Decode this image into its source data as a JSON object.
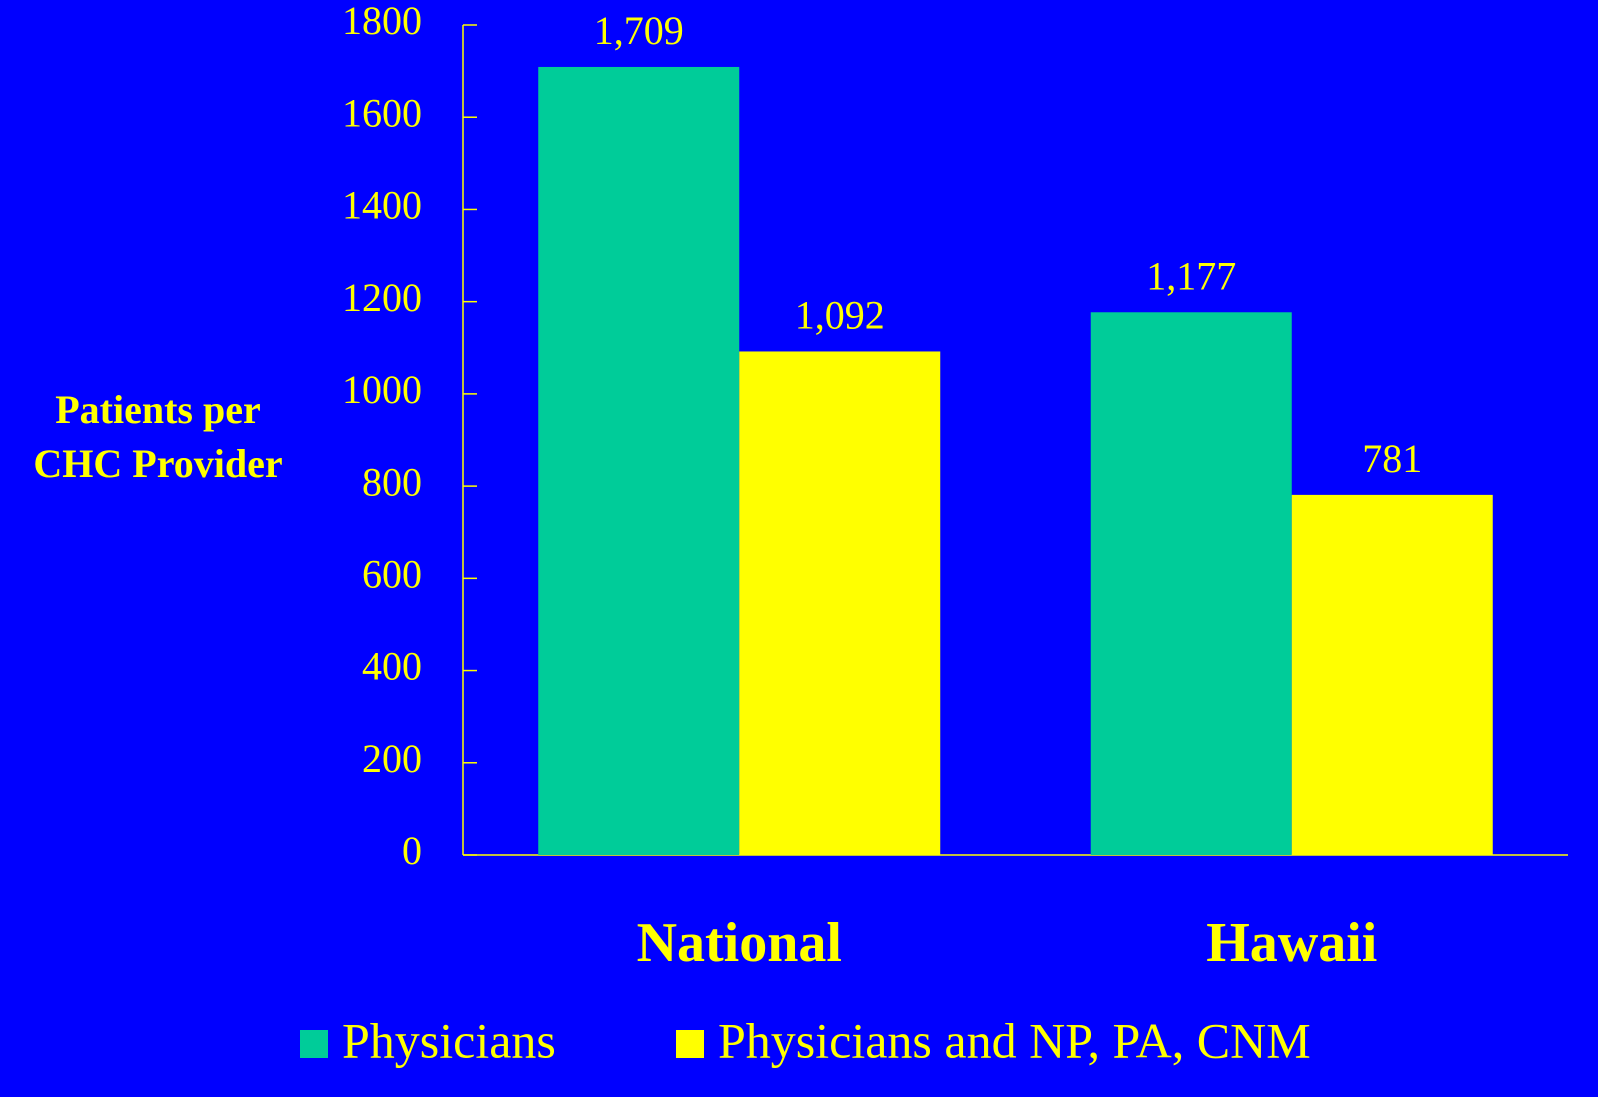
{
  "chart_data": {
    "type": "bar",
    "y_label": [
      "Patients per",
      "CHC Provider"
    ],
    "categories": [
      "National",
      "Hawaii"
    ],
    "series": [
      {
        "name": "Physicians",
        "color": "#00cc99",
        "values": [
          1709,
          1177
        ],
        "value_labels": [
          "1,709",
          "1,177"
        ]
      },
      {
        "name": "Physicians and NP, PA, CNM",
        "color": "#ffff00",
        "values": [
          1092,
          781
        ],
        "value_labels": [
          "1,092",
          "781"
        ]
      }
    ],
    "ylim": [
      0,
      1800
    ],
    "yticks": [
      0,
      200,
      400,
      600,
      800,
      1000,
      1200,
      1400,
      1600,
      1800
    ],
    "background": "#0000ff",
    "text_color": "#ffff00",
    "grid": false
  }
}
